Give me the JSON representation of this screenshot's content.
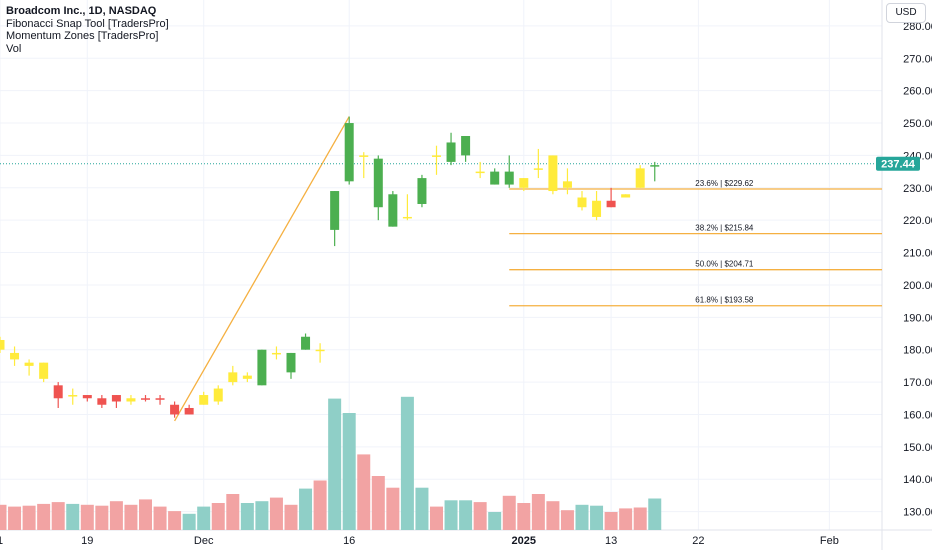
{
  "header": {
    "title": "Broadcom Inc., 1D, NASDAQ",
    "indicators": [
      "Fibonacci Snap Tool [TradersPro]",
      "Momentum Zones [TradersPro]",
      "Vol"
    ],
    "currency": "USD"
  },
  "colors": {
    "bull": "#4caf50",
    "bear": "#ef5350",
    "neutral": "#ffeb3b",
    "vol_bull": "#8fcfc7",
    "vol_bear": "#f2a3a3",
    "fib": "#f5b041",
    "price_label": "#26a69a",
    "grid": "#f0f3fa"
  },
  "chart_data": {
    "type": "candlestick",
    "title": "Broadcom Inc., 1D, NASDAQ",
    "y_axis": {
      "min": 125,
      "max": 285,
      "ticks": [
        130,
        140,
        150,
        160,
        170,
        180,
        190,
        200,
        210,
        220,
        230,
        240,
        250,
        260,
        270,
        280
      ],
      "tick_labels": [
        "130.00",
        "140.00",
        "150.00",
        "160.00",
        "170.00",
        "180.00",
        "190.00",
        "200.00",
        "210.00",
        "220.00",
        "230.00",
        "240.00",
        "250.00",
        "260.00",
        "270.00",
        "280.00"
      ]
    },
    "x_axis": {
      "labels": [
        {
          "label": "1",
          "index": 0
        },
        {
          "label": "19",
          "index": 6
        },
        {
          "label": "Dec",
          "index": 14
        },
        {
          "label": "16",
          "index": 24
        },
        {
          "label": "2025",
          "index": 36,
          "bold": true
        },
        {
          "label": "13",
          "index": 42
        },
        {
          "label": "22",
          "index": 48
        },
        {
          "label": "Feb",
          "index": 57
        }
      ]
    },
    "last_price": 237.44,
    "last_price_label": "237.44",
    "candles": [
      {
        "o": 183,
        "h": 184,
        "l": 179,
        "c": 180,
        "t": "neutral"
      },
      {
        "o": 179,
        "h": 181,
        "l": 175,
        "c": 177,
        "t": "neutral"
      },
      {
        "o": 176,
        "h": 177,
        "l": 172,
        "c": 175,
        "t": "neutral"
      },
      {
        "o": 176,
        "h": 176,
        "l": 170,
        "c": 171,
        "t": "neutral"
      },
      {
        "o": 169,
        "h": 170,
        "l": 162,
        "c": 165,
        "t": "bear"
      },
      {
        "o": 166,
        "h": 168,
        "l": 163,
        "c": 166,
        "t": "neutral"
      },
      {
        "o": 166,
        "h": 166,
        "l": 164,
        "c": 165,
        "t": "bear"
      },
      {
        "o": 165,
        "h": 166,
        "l": 162,
        "c": 163,
        "t": "bear"
      },
      {
        "o": 166,
        "h": 166,
        "l": 162,
        "c": 164,
        "t": "bear"
      },
      {
        "o": 164,
        "h": 166,
        "l": 163,
        "c": 165,
        "t": "neutral"
      },
      {
        "o": 165,
        "h": 166,
        "l": 164,
        "c": 165,
        "t": "bear"
      },
      {
        "o": 165,
        "h": 166,
        "l": 163,
        "c": 165,
        "t": "bear"
      },
      {
        "o": 163,
        "h": 164,
        "l": 159,
        "c": 160,
        "t": "bear"
      },
      {
        "o": 162,
        "h": 163,
        "l": 160,
        "c": 160,
        "t": "bear"
      },
      {
        "o": 163,
        "h": 167,
        "l": 163,
        "c": 166,
        "t": "neutral"
      },
      {
        "o": 164,
        "h": 169,
        "l": 163,
        "c": 168,
        "t": "neutral"
      },
      {
        "o": 170,
        "h": 175,
        "l": 169,
        "c": 173,
        "t": "neutral"
      },
      {
        "o": 172,
        "h": 173,
        "l": 170,
        "c": 171,
        "t": "neutral"
      },
      {
        "o": 169,
        "h": 180,
        "l": 169,
        "c": 180,
        "t": "bull"
      },
      {
        "o": 179,
        "h": 181,
        "l": 177,
        "c": 179,
        "t": "neutral"
      },
      {
        "o": 173,
        "h": 179,
        "l": 171,
        "c": 179,
        "t": "bull"
      },
      {
        "o": 180,
        "h": 185,
        "l": 180,
        "c": 184,
        "t": "bull"
      },
      {
        "o": 180,
        "h": 182,
        "l": 176,
        "c": 180,
        "t": "neutral"
      },
      {
        "o": 217,
        "h": 229,
        "l": 212,
        "c": 229,
        "t": "bull"
      },
      {
        "o": 232,
        "h": 252,
        "l": 231,
        "c": 250,
        "t": "bull"
      },
      {
        "o": 240,
        "h": 241,
        "l": 233,
        "c": 240,
        "t": "neutral"
      },
      {
        "o": 239,
        "h": 240,
        "l": 220,
        "c": 224,
        "t": "bull"
      },
      {
        "o": 218,
        "h": 229,
        "l": 218,
        "c": 228,
        "t": "bull"
      },
      {
        "o": 221,
        "h": 228,
        "l": 220,
        "c": 221,
        "t": "neutral"
      },
      {
        "o": 225,
        "h": 234,
        "l": 224,
        "c": 233,
        "t": "bull"
      },
      {
        "o": 240,
        "h": 243,
        "l": 234,
        "c": 240,
        "t": "neutral"
      },
      {
        "o": 238,
        "h": 247,
        "l": 237,
        "c": 244,
        "t": "bull"
      },
      {
        "o": 240,
        "h": 246,
        "l": 238,
        "c": 246,
        "t": "bull"
      },
      {
        "o": 235,
        "h": 238,
        "l": 233,
        "c": 235,
        "t": "neutral"
      },
      {
        "o": 231,
        "h": 236,
        "l": 231,
        "c": 235,
        "t": "bull"
      },
      {
        "o": 231,
        "h": 240,
        "l": 230,
        "c": 235,
        "t": "bull"
      },
      {
        "o": 230,
        "h": 233,
        "l": 229,
        "c": 233,
        "t": "neutral"
      },
      {
        "o": 236,
        "h": 242,
        "l": 233,
        "c": 236,
        "t": "neutral"
      },
      {
        "o": 240,
        "h": 240,
        "l": 228,
        "c": 229,
        "t": "neutral"
      },
      {
        "o": 232,
        "h": 236,
        "l": 228,
        "c": 230,
        "t": "neutral"
      },
      {
        "o": 227,
        "h": 229,
        "l": 223,
        "c": 224,
        "t": "neutral"
      },
      {
        "o": 226,
        "h": 229,
        "l": 220,
        "c": 221,
        "t": "neutral"
      },
      {
        "o": 224,
        "h": 230,
        "l": 224,
        "c": 226,
        "t": "bear"
      },
      {
        "o": 227,
        "h": 228,
        "l": 227,
        "c": 228,
        "t": "neutral"
      },
      {
        "o": 230,
        "h": 237,
        "l": 230,
        "c": 236,
        "t": "neutral"
      },
      {
        "o": 237,
        "h": 238,
        "l": 232,
        "c": 237,
        "t": "bull"
      }
    ],
    "volume": [
      {
        "v": 28,
        "t": "bear"
      },
      {
        "v": 26,
        "t": "bear"
      },
      {
        "v": 27,
        "t": "bear"
      },
      {
        "v": 29,
        "t": "bear"
      },
      {
        "v": 31,
        "t": "bear"
      },
      {
        "v": 29,
        "t": "bull"
      },
      {
        "v": 28,
        "t": "bear"
      },
      {
        "v": 27,
        "t": "bear"
      },
      {
        "v": 32,
        "t": "bear"
      },
      {
        "v": 28,
        "t": "bear"
      },
      {
        "v": 34,
        "t": "bear"
      },
      {
        "v": 26,
        "t": "bear"
      },
      {
        "v": 21,
        "t": "bear"
      },
      {
        "v": 18,
        "t": "bull"
      },
      {
        "v": 26,
        "t": "bull"
      },
      {
        "v": 30,
        "t": "bear"
      },
      {
        "v": 40,
        "t": "bear"
      },
      {
        "v": 30,
        "t": "bull"
      },
      {
        "v": 32,
        "t": "bull"
      },
      {
        "v": 36,
        "t": "bear"
      },
      {
        "v": 28,
        "t": "bear"
      },
      {
        "v": 46,
        "t": "bull"
      },
      {
        "v": 55,
        "t": "bear"
      },
      {
        "v": 146,
        "t": "bull"
      },
      {
        "v": 130,
        "t": "bull"
      },
      {
        "v": 84,
        "t": "bear"
      },
      {
        "v": 60,
        "t": "bear"
      },
      {
        "v": 47,
        "t": "bear"
      },
      {
        "v": 148,
        "t": "bull"
      },
      {
        "v": 47,
        "t": "bull"
      },
      {
        "v": 26,
        "t": "bear"
      },
      {
        "v": 33,
        "t": "bull"
      },
      {
        "v": 33,
        "t": "bull"
      },
      {
        "v": 31,
        "t": "bear"
      },
      {
        "v": 20,
        "t": "bull"
      },
      {
        "v": 38,
        "t": "bear"
      },
      {
        "v": 30,
        "t": "bear"
      },
      {
        "v": 40,
        "t": "bear"
      },
      {
        "v": 32,
        "t": "bear"
      },
      {
        "v": 22,
        "t": "bear"
      },
      {
        "v": 28,
        "t": "bull"
      },
      {
        "v": 27,
        "t": "bull"
      },
      {
        "v": 20,
        "t": "bear"
      },
      {
        "v": 24,
        "t": "bear"
      },
      {
        "v": 25,
        "t": "bear"
      },
      {
        "v": 35,
        "t": "bull"
      }
    ],
    "fib_levels": [
      {
        "label": "23.6% | $229.62",
        "value": 229.62
      },
      {
        "label": "38.2% | $215.84",
        "value": 215.84
      },
      {
        "label": "50.0% | $204.71",
        "value": 204.71
      },
      {
        "label": "61.8% | $193.58",
        "value": 193.58
      }
    ],
    "fib_anchor_index": 35,
    "swing_line": [
      {
        "index": 12,
        "price": 158
      },
      {
        "index": 24,
        "price": 252
      }
    ]
  }
}
